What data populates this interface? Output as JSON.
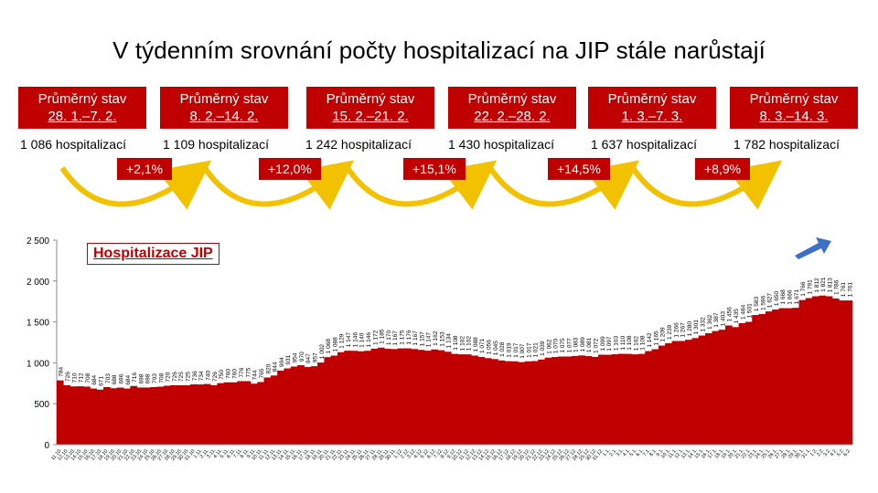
{
  "title": "V týdenním srovnání počty hospitalizací na JIP stále narůstají",
  "weeks": [
    {
      "label": "Průměrný stav",
      "range": "28. 1.–7. 2.",
      "hosp": "1 086 hospitalizací"
    },
    {
      "label": "Průměrný stav",
      "range": "8. 2.–14. 2.",
      "hosp": "1 109 hospitalizací"
    },
    {
      "label": "Průměrný stav",
      "range": "15. 2.–21. 2.",
      "hosp": "1 242 hospitalizací"
    },
    {
      "label": "Průměrný stav",
      "range": "22. 2.–28. 2.",
      "hosp": "1 430 hospitalizací"
    },
    {
      "label": "Průměrný stav",
      "range": "1. 3.–7. 3.",
      "hosp": "1 637 hospitalizací"
    },
    {
      "label": "Průměrný stav",
      "range": "8. 3.–14. 3.",
      "hosp": "1 782 hospitalizací"
    }
  ],
  "changes": [
    "+2,1%",
    "+12,0%",
    "+15,1%",
    "+14,5%",
    "+8,9%"
  ],
  "colors": {
    "bar": "#c00000",
    "box": "#c00000",
    "arrow": "#f2c200",
    "trend_arrow": "#3d6fc4"
  },
  "chart_data": {
    "type": "bar",
    "title": "Hospitalizace JIP",
    "xlabel": "",
    "ylabel": "",
    "ylim": [
      0,
      2500
    ],
    "yticks": [
      "0",
      "500",
      "1 000",
      "1 500",
      "2 000",
      "2 500"
    ],
    "value_labels": [
      "784",
      "726",
      "710",
      "712",
      "708",
      "684",
      "671",
      "703",
      "688",
      "696",
      "684",
      "716",
      "698",
      "698",
      "703",
      "708",
      "720",
      "726",
      "725",
      "725",
      "736",
      "734",
      "740",
      "726",
      "750",
      "760",
      "760",
      "776",
      "775",
      "744",
      "765",
      "820",
      "844",
      "904",
      "931",
      "954",
      "970",
      "947",
      "957",
      "1 002",
      "1 068",
      "1 088",
      "1 129",
      "1 147",
      "1 146",
      "1 140",
      "1 146",
      "1 172",
      "1 185",
      "1 170",
      "1 167",
      "1 175",
      "1 176",
      "1 167",
      "1 157",
      "1 147",
      "1 162",
      "1 153",
      "1 134",
      "1 108",
      "1 102",
      "1 102",
      "1 088",
      "1 071",
      "1 056",
      "1 045",
      "1 028",
      "1 019",
      "1 017",
      "1 007",
      "1 017",
      "1 021",
      "1 039",
      "1 062",
      "1 070",
      "1 075",
      "1 077",
      "1 083",
      "1 089",
      "1 081",
      "1 072",
      "1 099",
      "1 097",
      "1 103",
      "1 110",
      "1 108",
      "1 102",
      "1 108",
      "1 142",
      "1 165",
      "1 209",
      "1 239",
      "1 266",
      "1 267",
      "1 280",
      "1 301",
      "1 332",
      "1 362",
      "1 387",
      "1 403",
      "1 456",
      "1 435",
      "1 484",
      "1 501",
      "1 583",
      "1 596",
      "1 627",
      "1 650",
      "1 668",
      "1 666",
      "1 671",
      "1 766",
      "1 791",
      "1 812",
      "1 821",
      "1 813",
      "1 786",
      "1 761",
      "1 761"
    ],
    "x": [
      "11.10.",
      "12.10.",
      "13.10.",
      "14.10.",
      "15.10.",
      "16.10.",
      "17.10.",
      "18.10.",
      "19.10.",
      "20.10.",
      "21.10.",
      "22.10.",
      "23.10.",
      "24.10.",
      "25.10.",
      "26.10.",
      "27.10.",
      "28.10.",
      "29.10.",
      "30.10.",
      "31.10.",
      "1.11.",
      "2.11.",
      "3.11.",
      "4.11.",
      "5.11.",
      "6.11.",
      "7.11.",
      "8.11.",
      "9.11.",
      "10.11.",
      "11.11.",
      "12.11.",
      "13.11.",
      "14.11.",
      "15.11.",
      "16.11.",
      "17.11.",
      "18.11.",
      "19.11.",
      "20.11.",
      "21.11.",
      "22.11.",
      "23.11.",
      "24.11.",
      "25.11.",
      "26.11.",
      "27.11.",
      "28.11.",
      "29.11.",
      "30.11.",
      "1.12.",
      "2.12.",
      "3.12.",
      "4.12.",
      "5.12.",
      "6.12.",
      "7.12.",
      "8.12.",
      "9.12.",
      "10.12.",
      "11.12.",
      "12.12.",
      "13.12.",
      "14.12.",
      "15.12.",
      "16.12.",
      "17.12.",
      "18.12.",
      "19.12.",
      "20.12.",
      "21.12.",
      "22.12.",
      "23.12.",
      "24.12.",
      "25.12.",
      "26.12.",
      "27.12.",
      "28.12.",
      "29.12.",
      "30.12.",
      "31.12.",
      "1.1.",
      "2.1.",
      "3.1.",
      "4.1.",
      "5.1.",
      "6.1.",
      "7.1.",
      "8.1.",
      "9.1.",
      "10.1.",
      "11.1.",
      "12.1.",
      "13.1.",
      "14.1.",
      "15.1.",
      "16.1.",
      "17.1.",
      "18.1.",
      "19.1.",
      "20.1.",
      "21.1.",
      "22.1.",
      "23.1.",
      "24.1.",
      "25.1.",
      "26.1.",
      "27.1.",
      "28.1.",
      "29.1.",
      "30.1.",
      "31.1.",
      "1.2.",
      "2.2.",
      "3.2.",
      "4.2.",
      "5.2.",
      "6.2."
    ],
    "values": [
      784,
      726,
      710,
      712,
      708,
      684,
      671,
      703,
      688,
      696,
      684,
      716,
      698,
      698,
      703,
      708,
      720,
      726,
      725,
      725,
      736,
      734,
      740,
      726,
      750,
      760,
      760,
      776,
      775,
      744,
      765,
      820,
      844,
      904,
      931,
      954,
      970,
      947,
      957,
      1002,
      1068,
      1088,
      1129,
      1147,
      1146,
      1140,
      1146,
      1172,
      1185,
      1170,
      1167,
      1175,
      1176,
      1167,
      1157,
      1147,
      1162,
      1153,
      1134,
      1108,
      1102,
      1102,
      1088,
      1071,
      1056,
      1045,
      1028,
      1019,
      1017,
      1007,
      1017,
      1021,
      1039,
      1062,
      1070,
      1075,
      1077,
      1083,
      1089,
      1081,
      1072,
      1099,
      1097,
      1103,
      1110,
      1108,
      1102,
      1108,
      1142,
      1165,
      1209,
      1239,
      1266,
      1267,
      1280,
      1301,
      1332,
      1362,
      1387,
      1403,
      1456,
      1435,
      1484,
      1501,
      1583,
      1596,
      1627,
      1650,
      1668,
      1666,
      1671,
      1766,
      1791,
      1812,
      1821,
      1813,
      1786,
      1761,
      1761
    ]
  }
}
